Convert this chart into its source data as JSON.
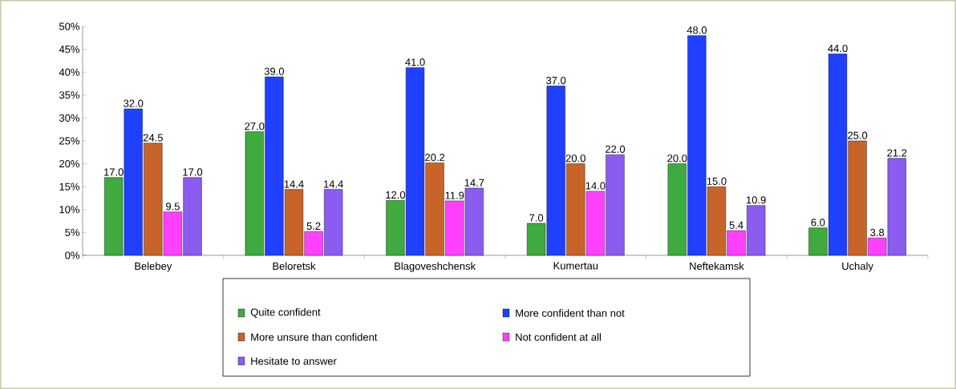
{
  "chart_data": {
    "type": "bar",
    "categories": [
      "Belebey",
      "Beloretsk",
      "Blagoveshchensk",
      "Kumertau",
      "Neftekamsk",
      "Uchaly"
    ],
    "series": [
      {
        "name": "Quite confident",
        "color": "#3faa3f",
        "values": [
          17.0,
          27.0,
          12.0,
          7.0,
          20.0,
          6.0
        ],
        "value_labels": [
          "17.0",
          "27.0",
          "12.0",
          "7.0",
          "20.0",
          "6.0"
        ]
      },
      {
        "name": "More confident than not",
        "color": "#2040ff",
        "values": [
          32.0,
          39.0,
          41.0,
          37.0,
          48.0,
          44.0
        ],
        "value_labels": [
          "32.0",
          "39.0",
          "41.0",
          "37.0",
          "48.0",
          "44.0"
        ]
      },
      {
        "name": "More unsure than confident",
        "color": "#c8642a",
        "values": [
          24.5,
          14.4,
          20.2,
          20.0,
          15.0,
          25.0
        ],
        "value_labels": [
          "24.5",
          "14.4",
          "20.2",
          "20.0",
          "15.0",
          "25.0"
        ]
      },
      {
        "name": "Not confident at all",
        "color": "#ff40ff",
        "values": [
          9.5,
          5.2,
          11.9,
          14.0,
          5.4,
          3.8
        ],
        "value_labels": [
          "9.5",
          "5.2",
          "11.9",
          "14.0",
          "5.4",
          "3.8"
        ]
      },
      {
        "name": "Hesitate to answer",
        "color": "#8a5cf0",
        "values": [
          17.0,
          14.4,
          14.7,
          22.0,
          10.9,
          21.2
        ],
        "value_labels": [
          "17.0",
          "14.4",
          "14.7",
          "22.0",
          "10.9",
          "21.2"
        ]
      }
    ],
    "ylim": [
      0,
      50
    ],
    "yticks": [
      {
        "value": 0,
        "label": "0%"
      },
      {
        "value": 5,
        "label": "5%"
      },
      {
        "value": 10,
        "label": "10%"
      },
      {
        "value": 15,
        "label": "15%"
      },
      {
        "value": 20,
        "label": "20%"
      },
      {
        "value": 25,
        "label": "25%"
      },
      {
        "value": 30,
        "label": "30%"
      },
      {
        "value": 35,
        "label": "35%"
      },
      {
        "value": 40,
        "label": "40%"
      },
      {
        "value": 45,
        "label": "45%"
      },
      {
        "value": 50,
        "label": "50%"
      }
    ],
    "grid": false,
    "legend": "bottom"
  }
}
